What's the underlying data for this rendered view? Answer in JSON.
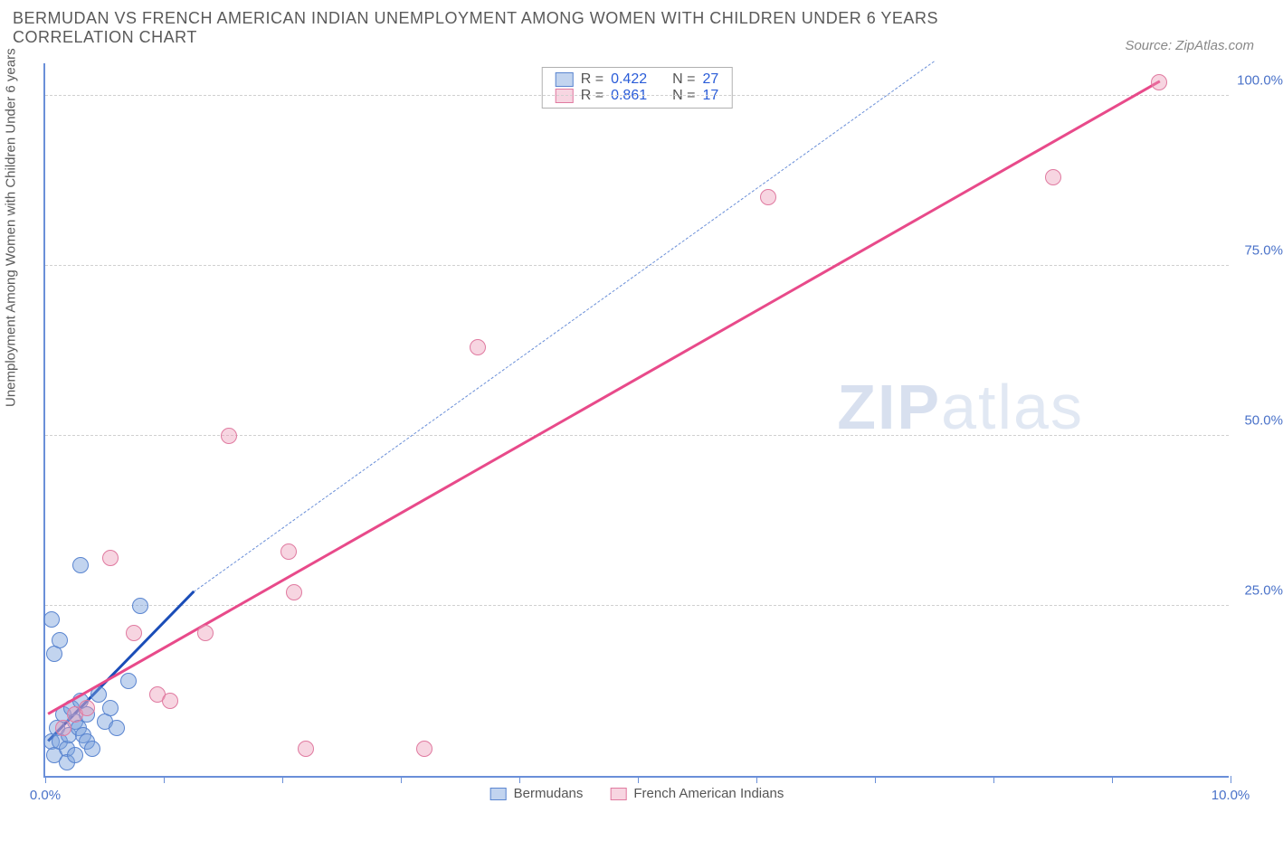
{
  "title": "BERMUDAN VS FRENCH AMERICAN INDIAN UNEMPLOYMENT AMONG WOMEN WITH CHILDREN UNDER 6 YEARS CORRELATION CHART",
  "source": "Source: ZipAtlas.com",
  "ylabel": "Unemployment Among Women with Children Under 6 years",
  "watermark_bold": "ZIP",
  "watermark_light": "atlas",
  "chart": {
    "type": "scatter",
    "background_color": "#ffffff",
    "axis_color": "#6a8fd8",
    "grid_color": "#d0d0d0",
    "tick_label_color": "#4a72c9",
    "text_color": "#5a5a5a",
    "xlim": [
      0,
      10
    ],
    "ylim": [
      0,
      105
    ],
    "xticks": [
      0,
      1,
      2,
      3,
      4,
      5,
      6,
      7,
      8,
      9,
      10
    ],
    "xtick_labels": {
      "0": "0.0%",
      "10": "10.0%"
    },
    "yticks": [
      25,
      50,
      75,
      100
    ],
    "ytick_labels": {
      "25": "25.0%",
      "50": "50.0%",
      "75": "75.0%",
      "100": "100.0%"
    },
    "marker_radius": 9,
    "series": [
      {
        "name": "Bermudans",
        "marker_fill": "rgba(120,160,220,0.45)",
        "marker_stroke": "#5a85d0",
        "trend_solid_color": "#1a4db8",
        "trend_dash_color": "#6a8fd8",
        "R": "0.422",
        "N": "27",
        "points": [
          [
            0.05,
            5
          ],
          [
            0.08,
            3
          ],
          [
            0.1,
            7
          ],
          [
            0.12,
            5
          ],
          [
            0.15,
            9
          ],
          [
            0.18,
            4
          ],
          [
            0.2,
            6
          ],
          [
            0.22,
            10
          ],
          [
            0.25,
            8
          ],
          [
            0.18,
            2
          ],
          [
            0.28,
            7
          ],
          [
            0.3,
            11
          ],
          [
            0.32,
            6
          ],
          [
            0.35,
            9
          ],
          [
            0.08,
            18
          ],
          [
            0.12,
            20
          ],
          [
            0.05,
            23
          ],
          [
            0.3,
            31
          ],
          [
            0.45,
            12
          ],
          [
            0.5,
            8
          ],
          [
            0.55,
            10
          ],
          [
            0.6,
            7
          ],
          [
            0.35,
            5
          ],
          [
            0.4,
            4
          ],
          [
            0.25,
            3
          ],
          [
            0.8,
            25
          ],
          [
            0.7,
            14
          ]
        ],
        "trend_solid": {
          "x1": 0.02,
          "y1": 5,
          "x2": 1.25,
          "y2": 27
        },
        "trend_dash": {
          "x1": 1.25,
          "y1": 27,
          "x2": 7.5,
          "y2": 105
        }
      },
      {
        "name": "French American Indians",
        "marker_fill": "rgba(235,150,180,0.40)",
        "marker_stroke": "#e07aa0",
        "trend_solid_color": "#e84a8a",
        "trend_dash_color": "#e84a8a",
        "R": "0.861",
        "N": "17",
        "points": [
          [
            0.15,
            7
          ],
          [
            0.25,
            9
          ],
          [
            0.35,
            10
          ],
          [
            0.55,
            32
          ],
          [
            0.75,
            21
          ],
          [
            0.95,
            12
          ],
          [
            1.05,
            11
          ],
          [
            1.35,
            21
          ],
          [
            1.55,
            50
          ],
          [
            2.05,
            33
          ],
          [
            2.2,
            4
          ],
          [
            2.1,
            27
          ],
          [
            3.2,
            4
          ],
          [
            3.65,
            63
          ],
          [
            6.1,
            85
          ],
          [
            8.5,
            88
          ],
          [
            9.4,
            102
          ]
        ],
        "trend_solid": {
          "x1": 0.02,
          "y1": 9,
          "x2": 9.4,
          "y2": 102
        },
        "trend_dash": null
      }
    ]
  },
  "legend_top": [
    {
      "swatch_fill": "rgba(120,160,220,0.45)",
      "swatch_stroke": "#5a85d0",
      "r_label": "R =",
      "r_val": "0.422",
      "n_label": "N =",
      "n_val": "27"
    },
    {
      "swatch_fill": "rgba(235,150,180,0.40)",
      "swatch_stroke": "#e07aa0",
      "r_label": "R =",
      "r_val": "0.861",
      "n_label": "N =",
      "n_val": "17"
    }
  ],
  "legend_bottom": [
    {
      "swatch_fill": "rgba(120,160,220,0.45)",
      "swatch_stroke": "#5a85d0",
      "label": "Bermudans"
    },
    {
      "swatch_fill": "rgba(235,150,180,0.40)",
      "swatch_stroke": "#e07aa0",
      "label": "French American Indians"
    }
  ]
}
